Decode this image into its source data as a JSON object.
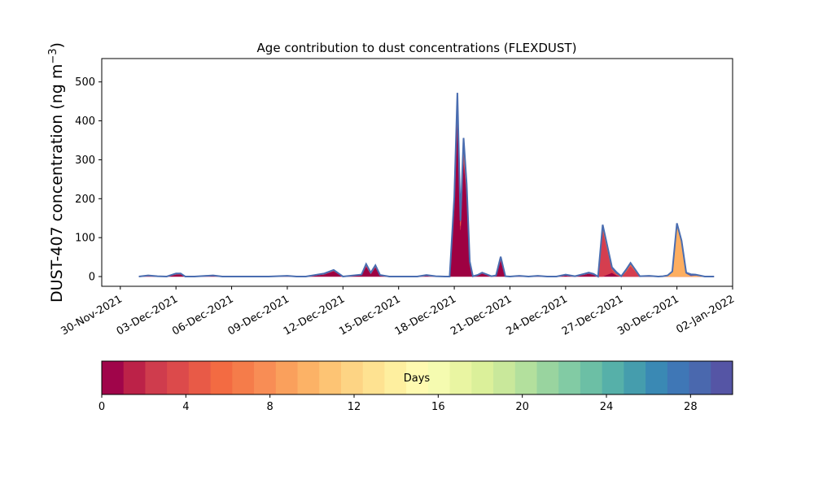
{
  "chart_data": {
    "type": "area",
    "title": "Age contribution to dust concentrations (FLEXDUST)",
    "ylabel_main": "DUST-407 concentration (ng m",
    "ylabel_sup": "−3",
    "ylabel_close": ")",
    "xlim": [
      "2021-11-29",
      "2022-01-02"
    ],
    "ylim": [
      -25,
      560
    ],
    "yticks": [
      0,
      100,
      200,
      300,
      400,
      500
    ],
    "xticks": [
      "2021-11-30",
      "2021-12-03",
      "2021-12-06",
      "2021-12-09",
      "2021-12-12",
      "2021-12-15",
      "2021-12-18",
      "2021-12-21",
      "2021-12-24",
      "2021-12-27",
      "2021-12-30",
      "2022-01-02"
    ],
    "xtick_labels": [
      "30-Nov-2021",
      "03-Dec-2021",
      "06-Dec-2021",
      "09-Dec-2021",
      "12-Dec-2021",
      "15-Dec-2021",
      "18-Dec-2021",
      "21-Dec-2021",
      "24-Dec-2021",
      "27-Dec-2021",
      "30-Dec-2021",
      "02-Jan-2022"
    ],
    "grid": false,
    "legend": "none",
    "x": [
      "2021-12-01",
      "2021-12-01 12:00",
      "2021-12-02",
      "2021-12-02 12:00",
      "2021-12-03",
      "2021-12-03 06:00",
      "2021-12-03 12:00",
      "2021-12-04",
      "2021-12-05",
      "2021-12-05 12:00",
      "2021-12-06",
      "2021-12-08",
      "2021-12-09",
      "2021-12-09 12:00",
      "2021-12-10",
      "2021-12-11",
      "2021-12-11 12:00",
      "2021-12-12",
      "2021-12-13",
      "2021-12-13 06:00",
      "2021-12-13 12:00",
      "2021-12-13 18:00",
      "2021-12-14",
      "2021-12-14 12:00",
      "2021-12-15",
      "2021-12-16",
      "2021-12-16 12:00",
      "2021-12-17",
      "2021-12-17 12:00",
      "2021-12-17 18:00",
      "2021-12-18",
      "2021-12-18 04:00",
      "2021-12-18 08:00",
      "2021-12-18 12:00",
      "2021-12-18 16:00",
      "2021-12-18 20:00",
      "2021-12-19",
      "2021-12-19 06:00",
      "2021-12-19 12:00",
      "2021-12-20",
      "2021-12-20 06:00",
      "2021-12-20 12:00",
      "2021-12-20 18:00",
      "2021-12-21",
      "2021-12-21 12:00",
      "2021-12-22",
      "2021-12-22 12:00",
      "2021-12-23",
      "2021-12-23 12:00",
      "2021-12-24",
      "2021-12-24 12:00",
      "2021-12-25",
      "2021-12-25 06:00",
      "2021-12-25 12:00",
      "2021-12-25 18:00",
      "2021-12-26",
      "2021-12-26 12:00",
      "2021-12-26 18:00",
      "2021-12-27",
      "2021-12-27 06:00",
      "2021-12-27 12:00",
      "2021-12-28",
      "2021-12-28 12:00",
      "2021-12-29",
      "2021-12-29 06:00",
      "2021-12-29 12:00",
      "2021-12-29 18:00",
      "2021-12-30",
      "2021-12-30 06:00",
      "2021-12-30 12:00",
      "2021-12-30 18:00",
      "2021-12-31",
      "2021-12-31 12:00",
      "2022-01-01"
    ],
    "series": [
      {
        "values": [
          0,
          1,
          0,
          0,
          5,
          6,
          0,
          0,
          2,
          0,
          0,
          0,
          1,
          0,
          0,
          6,
          14,
          0,
          4,
          26,
          7,
          24,
          3,
          0,
          0,
          0,
          2,
          0,
          0,
          0,
          180,
          410,
          120,
          300,
          210,
          30,
          0,
          3,
          8,
          0,
          2,
          42,
          0,
          0,
          1,
          0,
          1,
          0,
          0,
          3,
          0,
          5,
          8,
          5,
          0,
          0,
          10,
          3,
          0,
          0,
          0,
          0,
          0,
          0,
          0,
          0,
          0,
          0,
          0,
          0,
          0,
          0,
          0,
          0
        ],
        "color": "#9e0142"
      },
      {
        "values": [
          0,
          1,
          0,
          0,
          1,
          1,
          0,
          0,
          0,
          0,
          0,
          0,
          0,
          0,
          0,
          0,
          2,
          0,
          0,
          4,
          1,
          3,
          0,
          0,
          0,
          0,
          0,
          0,
          0,
          0,
          10,
          30,
          10,
          20,
          14,
          4,
          0,
          0,
          1,
          0,
          0,
          5,
          0,
          0,
          0,
          0,
          0,
          0,
          0,
          0,
          0,
          0,
          0,
          0,
          0,
          120,
          8,
          2,
          0,
          12,
          28,
          0,
          0,
          0,
          0,
          0,
          0,
          0,
          0,
          0,
          0,
          0,
          0,
          0
        ],
        "color": "#d53e4f"
      },
      {
        "values": [
          0,
          0,
          0,
          0,
          0,
          0,
          0,
          0,
          0,
          0,
          0,
          0,
          0,
          0,
          0,
          0,
          0,
          0,
          0,
          0,
          0,
          0,
          0,
          0,
          0,
          0,
          0,
          0,
          0,
          0,
          10,
          25,
          10,
          30,
          8,
          3,
          0,
          0,
          0,
          0,
          0,
          2,
          0,
          0,
          0,
          0,
          0,
          0,
          0,
          0,
          0,
          0,
          0,
          0,
          0,
          8,
          2,
          2,
          0,
          2,
          4,
          0,
          0,
          0,
          0,
          0,
          0,
          0,
          0,
          0,
          0,
          0,
          0,
          0
        ],
        "color": "#f46d43"
      },
      {
        "values": [
          0,
          0,
          0,
          0,
          0,
          0,
          0,
          0,
          0,
          0,
          0,
          0,
          0,
          0,
          0,
          0,
          0,
          0,
          0,
          0,
          0,
          0,
          0,
          0,
          0,
          0,
          0,
          0,
          0,
          0,
          0,
          0,
          0,
          0,
          0,
          0,
          0,
          0,
          0,
          0,
          0,
          0,
          0,
          0,
          0,
          0,
          0,
          0,
          0,
          0,
          0,
          0,
          0,
          0,
          0,
          0,
          0,
          0,
          0,
          0,
          0,
          0,
          0,
          0,
          0,
          2,
          12,
          135,
          90,
          8,
          2,
          3,
          0,
          0
        ],
        "color": "#fdae61"
      },
      {
        "values": [
          0,
          1,
          1,
          0,
          2,
          1,
          0,
          0,
          1,
          0,
          0,
          0,
          1,
          0,
          0,
          2,
          1,
          0,
          1,
          2,
          2,
          2,
          1,
          0,
          0,
          0,
          2,
          1,
          0,
          0,
          4,
          7,
          4,
          6,
          5,
          2,
          1,
          1,
          1,
          1,
          1,
          2,
          1,
          0,
          1,
          0,
          1,
          0,
          0,
          2,
          1,
          2,
          2,
          2,
          0,
          5,
          4,
          4,
          1,
          3,
          3,
          1,
          2,
          0,
          1,
          1,
          1,
          2,
          2,
          2,
          4,
          2,
          0,
          0
        ],
        "color": "#5e4fa2"
      }
    ],
    "stack_line_color": "#4a6db0",
    "colorbar": {
      "label": "Days",
      "range": [
        0,
        30
      ],
      "ticks": [
        0,
        4,
        8,
        12,
        16,
        20,
        24,
        28
      ],
      "colors": [
        "#a0054a",
        "#bc2248",
        "#cf3c4d",
        "#dc4a4b",
        "#e85a47",
        "#f36b42",
        "#f57c4a",
        "#f88d55",
        "#faa05c",
        "#fcb266",
        "#fdc474",
        "#fdd484",
        "#fee291",
        "#feef9f",
        "#fffab0",
        "#f5fbb0",
        "#e9f5a2",
        "#dbf09a",
        "#c9e89b",
        "#b3e09d",
        "#99d49f",
        "#82cba4",
        "#6cbfa5",
        "#56b0a9",
        "#459dad",
        "#3a89b4",
        "#3f77b6",
        "#4a68ae",
        "#5555a5"
      ]
    }
  }
}
